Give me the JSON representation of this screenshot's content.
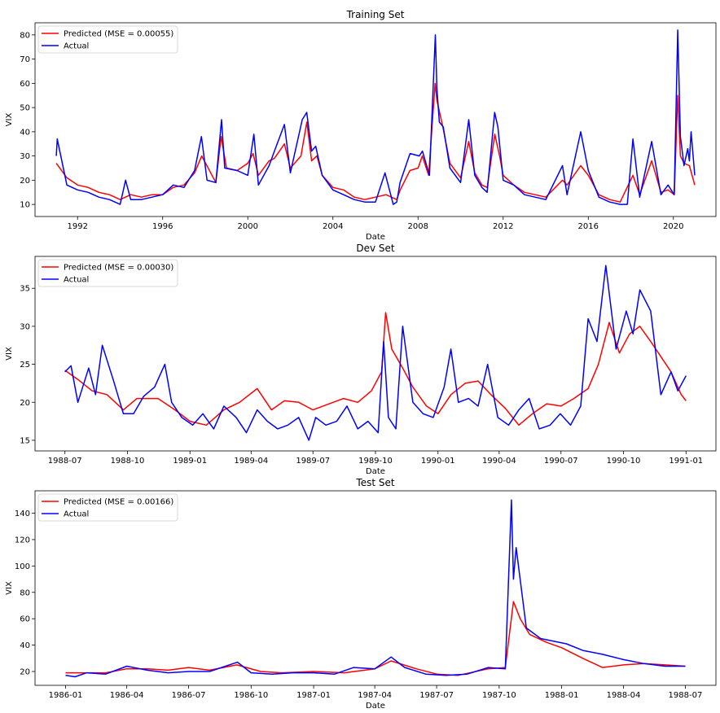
{
  "colors": {
    "predicted": "#ff0000",
    "actual": "#0000ff",
    "axes": "#000000",
    "legend_border": "#cccccc"
  },
  "chart_data": [
    {
      "type": "line",
      "title": "Training Set",
      "xlabel": "Date",
      "ylabel": "VIX",
      "x_range": [
        "1990-01-01",
        "2021-12-31"
      ],
      "xticks": [
        "1992",
        "1996",
        "2000",
        "2004",
        "2008",
        "2012",
        "2016",
        "2020"
      ],
      "xtick_dates": [
        "1992-01-01",
        "1996-01-01",
        "2000-01-01",
        "2004-01-01",
        "2008-01-01",
        "2012-01-01",
        "2016-01-01",
        "2020-01-01"
      ],
      "ylim": [
        5,
        85
      ],
      "yticks": [
        10,
        20,
        30,
        40,
        50,
        60,
        70,
        80
      ],
      "grid": false,
      "legend_position": "top-left",
      "series": [
        {
          "name": "Predicted (MSE = 0.00055)",
          "color": "#ff0000",
          "x": [
            "1991-01-01",
            "1991-07-01",
            "1992-01-01",
            "1992-07-01",
            "1993-01-01",
            "1993-07-01",
            "1994-01-01",
            "1994-07-01",
            "1995-01-01",
            "1995-07-01",
            "1996-01-01",
            "1996-07-01",
            "1997-01-01",
            "1997-07-01",
            "1997-11-01",
            "1998-07-01",
            "1998-10-01",
            "1999-01-01",
            "1999-07-01",
            "2000-01-01",
            "2000-04-01",
            "2000-07-01",
            "2001-01-01",
            "2001-04-01",
            "2001-09-20",
            "2002-01-01",
            "2002-07-01",
            "2002-10-10",
            "2003-01-01",
            "2003-04-01",
            "2003-07-01",
            "2004-01-01",
            "2004-07-01",
            "2005-01-01",
            "2005-07-01",
            "2006-01-01",
            "2006-07-01",
            "2007-01-01",
            "2007-03-01",
            "2007-08-15",
            "2008-01-01",
            "2008-03-15",
            "2008-07-01",
            "2008-10-20",
            "2008-11-20",
            "2009-03-01",
            "2009-07-01",
            "2010-01-01",
            "2010-05-20",
            "2010-09-01",
            "2011-01-01",
            "2011-04-01",
            "2011-08-10",
            "2011-11-01",
            "2012-01-01",
            "2012-07-01",
            "2013-01-01",
            "2013-07-01",
            "2014-01-01",
            "2014-10-15",
            "2015-01-01",
            "2015-08-25",
            "2016-01-01",
            "2016-07-01",
            "2017-01-01",
            "2017-07-01",
            "2018-02-06",
            "2018-06-01",
            "2018-12-24",
            "2019-06-01",
            "2019-10-01",
            "2020-01-15",
            "2020-03-16",
            "2020-05-01",
            "2020-07-01",
            "2020-10-01",
            "2021-01-01"
          ],
          "y": [
            27,
            21,
            18,
            17,
            15,
            14,
            12,
            14,
            13,
            14,
            14,
            17,
            18,
            23,
            30,
            19,
            38,
            25,
            24,
            27,
            31,
            22,
            28,
            29,
            35,
            25,
            30,
            44,
            28,
            30,
            22,
            17,
            16,
            13,
            12,
            13,
            14,
            12,
            16,
            24,
            25,
            30,
            22,
            60,
            53,
            42,
            27,
            21,
            36,
            23,
            18,
            17,
            39,
            30,
            22,
            18,
            15,
            14,
            13,
            20,
            18,
            26,
            22,
            14,
            12,
            11,
            22,
            14,
            28,
            15,
            16,
            14,
            55,
            30,
            27,
            26,
            18
          ]
        },
        {
          "name": "Actual",
          "color": "#0000ff",
          "x": [
            "1991-01-01",
            "1991-01-17",
            "1991-07-01",
            "1992-01-01",
            "1992-07-01",
            "1993-01-01",
            "1993-07-01",
            "1994-01-01",
            "1994-04-04",
            "1994-07-01",
            "1995-01-01",
            "1995-07-01",
            "1996-01-01",
            "1996-07-01",
            "1997-01-01",
            "1997-07-01",
            "1997-10-27",
            "1998-02-01",
            "1998-07-01",
            "1998-10-08",
            "1998-12-01",
            "1999-07-01",
            "2000-01-01",
            "2000-04-14",
            "2000-07-01",
            "2001-01-01",
            "2001-04-01",
            "2001-09-20",
            "2002-01-01",
            "2002-07-24",
            "2002-10-09",
            "2003-01-01",
            "2003-03-11",
            "2003-07-01",
            "2004-01-01",
            "2004-07-01",
            "2005-01-01",
            "2005-07-01",
            "2006-01-01",
            "2006-06-13",
            "2006-11-01",
            "2007-01-01",
            "2007-02-27",
            "2007-08-16",
            "2008-01-22",
            "2008-03-17",
            "2008-07-15",
            "2008-10-24",
            "2008-11-20",
            "2009-01-01",
            "2009-03-09",
            "2009-07-01",
            "2010-01-01",
            "2010-05-20",
            "2010-09-01",
            "2011-01-01",
            "2011-04-01",
            "2011-08-08",
            "2011-10-03",
            "2012-01-01",
            "2012-07-01",
            "2013-01-01",
            "2013-07-01",
            "2014-01-01",
            "2014-10-15",
            "2015-01-01",
            "2015-08-24",
            "2016-01-01",
            "2016-07-01",
            "2017-01-01",
            "2017-07-01",
            "2017-11-01",
            "2018-02-05",
            "2018-06-01",
            "2018-12-24",
            "2019-06-01",
            "2019-10-01",
            "2020-01-15",
            "2020-03-16",
            "2020-05-01",
            "2020-07-01",
            "2020-09-03",
            "2020-10-01",
            "2020-10-30",
            "2021-01-01"
          ],
          "y": [
            30,
            37,
            18,
            16,
            15,
            13,
            12,
            10,
            20,
            12,
            12,
            13,
            14,
            18,
            17,
            24,
            38,
            20,
            19,
            45,
            25,
            24,
            22,
            39,
            18,
            26,
            32,
            43,
            23,
            45,
            48,
            32,
            34,
            22,
            16,
            14,
            12,
            11,
            11,
            23,
            10,
            11,
            19,
            31,
            30,
            32,
            22,
            80,
            58,
            44,
            42,
            25,
            19,
            45,
            22,
            17,
            15,
            48,
            42,
            20,
            18,
            14,
            13,
            12,
            26,
            14,
            40,
            24,
            13,
            11,
            10,
            10,
            37,
            13,
            36,
            14,
            18,
            14,
            82,
            38,
            26,
            33,
            28,
            40,
            22
          ]
        }
      ]
    },
    {
      "type": "line",
      "title": "Dev Set",
      "xlabel": "Date",
      "ylabel": "VIX",
      "x_range": [
        "1988-05-18",
        "1991-02-14"
      ],
      "xticks": [
        "1988-07",
        "1988-10",
        "1989-01",
        "1989-04",
        "1989-07",
        "1989-10",
        "1990-01",
        "1990-04",
        "1990-07",
        "1990-10",
        "1991-01"
      ],
      "xtick_dates": [
        "1988-07-01",
        "1988-10-01",
        "1989-01-01",
        "1989-04-01",
        "1989-07-01",
        "1989-10-01",
        "1990-01-01",
        "1990-04-01",
        "1990-07-01",
        "1990-10-01",
        "1991-01-01"
      ],
      "ylim": [
        13.6,
        39.2
      ],
      "yticks": [
        15,
        20,
        25,
        30,
        35
      ],
      "grid": false,
      "legend_position": "top-left",
      "series": [
        {
          "name": "Predicted (MSE = 0.00030)",
          "color": "#ff0000",
          "x": [
            "1988-07-01",
            "1988-07-20",
            "1988-08-10",
            "1988-09-01",
            "1988-09-25",
            "1988-10-15",
            "1988-11-15",
            "1988-12-10",
            "1989-01-01",
            "1989-01-25",
            "1989-02-20",
            "1989-03-15",
            "1989-04-10",
            "1989-05-01",
            "1989-05-20",
            "1989-06-10",
            "1989-07-01",
            "1989-07-25",
            "1989-08-15",
            "1989-09-05",
            "1989-09-25",
            "1989-10-10",
            "1989-10-16",
            "1989-10-25",
            "1989-11-10",
            "1989-11-25",
            "1989-12-15",
            "1990-01-01",
            "1990-01-20",
            "1990-02-10",
            "1990-03-01",
            "1990-03-20",
            "1990-04-10",
            "1990-04-30",
            "1990-05-20",
            "1990-06-10",
            "1990-07-01",
            "1990-07-20",
            "1990-08-10",
            "1990-08-25",
            "1990-09-10",
            "1990-09-25",
            "1990-10-10",
            "1990-10-25",
            "1990-11-10",
            "1990-11-25",
            "1990-12-10",
            "1990-12-25",
            "1991-01-01"
          ],
          "y": [
            24.2,
            23.0,
            21.5,
            21.0,
            19.0,
            20.5,
            20.5,
            19.0,
            17.5,
            17.0,
            19.0,
            20.0,
            21.8,
            19.0,
            20.2,
            20.0,
            19.0,
            19.8,
            20.5,
            20.0,
            21.5,
            24.0,
            31.8,
            27.0,
            24.5,
            22.0,
            19.5,
            18.5,
            21.0,
            22.5,
            22.8,
            21.0,
            19.2,
            17.0,
            18.5,
            19.8,
            19.5,
            20.5,
            21.8,
            25.0,
            30.5,
            26.5,
            29.0,
            30.0,
            28.0,
            26.0,
            24.0,
            21.0,
            20.2
          ]
        },
        {
          "name": "Actual",
          "color": "#0000ff",
          "x": [
            "1988-07-01",
            "1988-07-10",
            "1988-07-20",
            "1988-08-05",
            "1988-08-15",
            "1988-08-25",
            "1988-09-10",
            "1988-09-25",
            "1988-10-10",
            "1988-10-25",
            "1988-11-10",
            "1988-11-25",
            "1988-12-05",
            "1988-12-20",
            "1989-01-05",
            "1989-01-20",
            "1989-02-05",
            "1989-02-20",
            "1989-03-10",
            "1989-03-25",
            "1989-04-10",
            "1989-04-25",
            "1989-05-10",
            "1989-05-25",
            "1989-06-10",
            "1989-06-25",
            "1989-07-05",
            "1989-07-20",
            "1989-08-05",
            "1989-08-20",
            "1989-09-05",
            "1989-09-20",
            "1989-10-05",
            "1989-10-13",
            "1989-10-20",
            "1989-10-31",
            "1989-11-10",
            "1989-11-25",
            "1989-12-10",
            "1989-12-25",
            "1990-01-10",
            "1990-01-20",
            "1990-01-31",
            "1990-02-15",
            "1990-03-01",
            "1990-03-15",
            "1990-03-30",
            "1990-04-15",
            "1990-04-30",
            "1990-05-15",
            "1990-05-30",
            "1990-06-15",
            "1990-06-30",
            "1990-07-15",
            "1990-07-30",
            "1990-08-10",
            "1990-08-23",
            "1990-09-05",
            "1990-09-20",
            "1990-10-05",
            "1990-10-15",
            "1990-10-25",
            "1990-11-10",
            "1990-11-25",
            "1990-12-10",
            "1990-12-20",
            "1991-01-01"
          ],
          "y": [
            24.0,
            24.8,
            20.0,
            24.5,
            21.0,
            27.5,
            23.0,
            18.5,
            18.5,
            20.8,
            22.0,
            25.0,
            20.0,
            18.0,
            17.0,
            18.5,
            16.5,
            19.5,
            18.0,
            16.0,
            19.0,
            17.5,
            16.5,
            17.0,
            18.0,
            15.0,
            18.0,
            17.0,
            17.5,
            19.5,
            16.5,
            17.5,
            16.0,
            28.0,
            18.0,
            16.5,
            30.0,
            20.0,
            18.5,
            18.0,
            22.0,
            27.0,
            20.0,
            20.5,
            19.5,
            25.0,
            18.0,
            17.0,
            19.0,
            20.5,
            16.5,
            17.0,
            18.5,
            17.0,
            19.5,
            31.0,
            28.0,
            38.0,
            27.0,
            32.0,
            29.0,
            34.8,
            32.0,
            21.0,
            24.0,
            21.5,
            23.5
          ]
        }
      ]
    },
    {
      "type": "line",
      "title": "Test Set",
      "xlabel": "Date",
      "ylabel": "VIX",
      "x_range": [
        "1985-11-17",
        "1988-08-15"
      ],
      "xticks": [
        "1986-01",
        "1986-04",
        "1986-07",
        "1986-10",
        "1987-01",
        "1987-04",
        "1987-07",
        "1987-10",
        "1988-01",
        "1988-04",
        "1988-07"
      ],
      "xtick_dates": [
        "1986-01-01",
        "1986-04-01",
        "1986-07-01",
        "1986-10-01",
        "1987-01-01",
        "1987-04-01",
        "1987-07-01",
        "1987-10-01",
        "1988-01-01",
        "1988-04-01",
        "1988-07-01"
      ],
      "ylim": [
        9.5,
        157
      ],
      "yticks": [
        20,
        40,
        60,
        80,
        100,
        120,
        140
      ],
      "grid": false,
      "legend_position": "top-left",
      "series": [
        {
          "name": "Predicted (MSE = 0.00166)",
          "color": "#ff0000",
          "x": [
            "1986-01-01",
            "1986-02-01",
            "1986-03-01",
            "1986-04-01",
            "1986-05-01",
            "1986-06-01",
            "1986-07-01",
            "1986-08-01",
            "1986-09-10",
            "1986-10-15",
            "1986-11-15",
            "1987-01-01",
            "1987-02-15",
            "1987-04-01",
            "1987-04-25",
            "1987-06-01",
            "1987-07-01",
            "1987-08-01",
            "1987-09-15",
            "1987-10-10",
            "1987-10-22",
            "1987-11-01",
            "1987-11-15",
            "1987-12-10",
            "1988-01-01",
            "1988-02-01",
            "1988-03-01",
            "1988-04-01",
            "1988-05-01",
            "1988-06-01",
            "1988-07-01"
          ],
          "y": [
            19,
            19,
            19,
            22,
            22,
            21,
            23,
            21,
            25,
            20,
            19,
            20,
            19,
            22,
            28,
            22,
            18,
            17,
            22,
            23,
            73,
            60,
            48,
            42,
            38,
            30,
            23,
            25,
            26,
            25,
            24
          ]
        },
        {
          "name": "Actual",
          "color": "#0000ff",
          "x": [
            "1986-01-01",
            "1986-01-15",
            "1986-02-01",
            "1986-03-01",
            "1986-04-01",
            "1986-05-01",
            "1986-06-01",
            "1986-07-01",
            "1986-08-01",
            "1986-09-11",
            "1986-10-01",
            "1986-11-01",
            "1986-12-01",
            "1987-01-01",
            "1987-02-01",
            "1987-03-01",
            "1987-04-01",
            "1987-04-25",
            "1987-05-15",
            "1987-06-15",
            "1987-07-15",
            "1987-08-15",
            "1987-09-15",
            "1987-10-10",
            "1987-10-19",
            "1987-10-22",
            "1987-10-26",
            "1987-11-10",
            "1987-12-01",
            "1988-01-08",
            "1988-02-01",
            "1988-03-01",
            "1988-04-01",
            "1988-05-01",
            "1988-06-01",
            "1988-07-01"
          ],
          "y": [
            17,
            16,
            19,
            18,
            24,
            21,
            19,
            20,
            20,
            27,
            19,
            18,
            19,
            19,
            18,
            23,
            22,
            31,
            23,
            18,
            17,
            18,
            23,
            22,
            150,
            90,
            114,
            53,
            45,
            41,
            36,
            33,
            29,
            26,
            24,
            24
          ]
        }
      ]
    }
  ]
}
